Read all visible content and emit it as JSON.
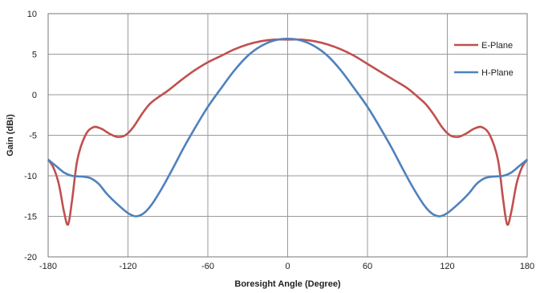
{
  "chart_data": {
    "type": "line",
    "xlabel": "Boresight Angle (Degree)",
    "ylabel": "Gain (dBi)",
    "xlim": [
      -180,
      180
    ],
    "ylim": [
      -20,
      10
    ],
    "x_ticks": [
      -180,
      -120,
      -60,
      0,
      60,
      120,
      180
    ],
    "y_ticks": [
      -20,
      -15,
      -10,
      -5,
      0,
      5,
      10
    ],
    "grid": true,
    "legend_position": "right",
    "series": [
      {
        "name": "E-Plane",
        "color": "#c0504d",
        "points": [
          [
            -180,
            -8
          ],
          [
            -176,
            -9
          ],
          [
            -172,
            -11
          ],
          [
            -168,
            -14.5
          ],
          [
            -165,
            -16
          ],
          [
            -162,
            -13
          ],
          [
            -158,
            -8
          ],
          [
            -152,
            -5
          ],
          [
            -146,
            -4
          ],
          [
            -140,
            -4.2
          ],
          [
            -134,
            -4.8
          ],
          [
            -128,
            -5.2
          ],
          [
            -122,
            -5
          ],
          [
            -116,
            -4
          ],
          [
            -110,
            -2.5
          ],
          [
            -104,
            -1.2
          ],
          [
            -98,
            -0.4
          ],
          [
            -90,
            0.5
          ],
          [
            -80,
            1.8
          ],
          [
            -70,
            3
          ],
          [
            -60,
            4
          ],
          [
            -50,
            4.8
          ],
          [
            -40,
            5.6
          ],
          [
            -30,
            6.2
          ],
          [
            -20,
            6.6
          ],
          [
            -10,
            6.8
          ],
          [
            0,
            6.8
          ],
          [
            10,
            6.8
          ],
          [
            20,
            6.6
          ],
          [
            30,
            6.2
          ],
          [
            40,
            5.6
          ],
          [
            50,
            4.8
          ],
          [
            60,
            3.8
          ],
          [
            70,
            2.8
          ],
          [
            80,
            1.8
          ],
          [
            90,
            0.8
          ],
          [
            98,
            -0.3
          ],
          [
            104,
            -1.2
          ],
          [
            110,
            -2.5
          ],
          [
            116,
            -4
          ],
          [
            122,
            -5
          ],
          [
            128,
            -5.2
          ],
          [
            134,
            -4.8
          ],
          [
            140,
            -4.2
          ],
          [
            146,
            -4
          ],
          [
            152,
            -5
          ],
          [
            158,
            -8
          ],
          [
            162,
            -13
          ],
          [
            165,
            -16
          ],
          [
            168,
            -14.5
          ],
          [
            172,
            -11
          ],
          [
            176,
            -9
          ],
          [
            180,
            -8
          ]
        ]
      },
      {
        "name": "H-Plane",
        "color": "#4f81bd",
        "points": [
          [
            -180,
            -8
          ],
          [
            -174,
            -8.8
          ],
          [
            -168,
            -9.6
          ],
          [
            -162,
            -10
          ],
          [
            -154,
            -10.1
          ],
          [
            -148,
            -10.3
          ],
          [
            -142,
            -11
          ],
          [
            -136,
            -12.2
          ],
          [
            -128,
            -13.5
          ],
          [
            -120,
            -14.6
          ],
          [
            -114,
            -15
          ],
          [
            -108,
            -14.6
          ],
          [
            -102,
            -13.5
          ],
          [
            -94,
            -11.4
          ],
          [
            -86,
            -9
          ],
          [
            -78,
            -6.5
          ],
          [
            -70,
            -4.2
          ],
          [
            -60,
            -1.5
          ],
          [
            -50,
            0.8
          ],
          [
            -40,
            3
          ],
          [
            -30,
            4.8
          ],
          [
            -20,
            6
          ],
          [
            -10,
            6.7
          ],
          [
            0,
            6.9
          ],
          [
            10,
            6.7
          ],
          [
            20,
            6
          ],
          [
            30,
            4.8
          ],
          [
            40,
            3
          ],
          [
            50,
            0.8
          ],
          [
            60,
            -1.5
          ],
          [
            70,
            -4.2
          ],
          [
            78,
            -6.5
          ],
          [
            86,
            -9
          ],
          [
            94,
            -11.4
          ],
          [
            102,
            -13.5
          ],
          [
            108,
            -14.6
          ],
          [
            114,
            -15
          ],
          [
            120,
            -14.6
          ],
          [
            128,
            -13.5
          ],
          [
            136,
            -12.2
          ],
          [
            142,
            -11
          ],
          [
            148,
            -10.3
          ],
          [
            154,
            -10.1
          ],
          [
            162,
            -10
          ],
          [
            168,
            -9.6
          ],
          [
            174,
            -8.8
          ],
          [
            180,
            -8
          ]
        ]
      }
    ]
  }
}
